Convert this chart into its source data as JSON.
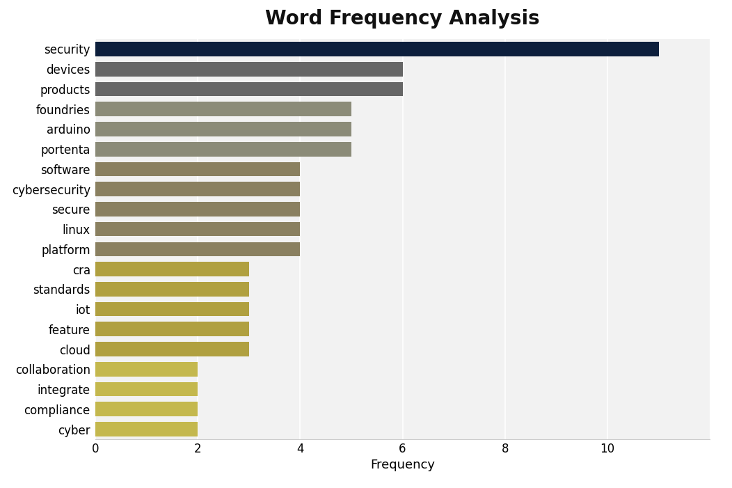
{
  "title": "Word Frequency Analysis",
  "categories": [
    "security",
    "devices",
    "products",
    "foundries",
    "arduino",
    "portenta",
    "software",
    "cybersecurity",
    "secure",
    "linux",
    "platform",
    "cra",
    "standards",
    "iot",
    "feature",
    "cloud",
    "collaboration",
    "integrate",
    "compliance",
    "cyber"
  ],
  "values": [
    11,
    6,
    6,
    5,
    5,
    5,
    4,
    4,
    4,
    4,
    4,
    3,
    3,
    3,
    3,
    3,
    2,
    2,
    2,
    2
  ],
  "bar_colors": [
    "#0d1f3c",
    "#666666",
    "#666666",
    "#8b8b78",
    "#8b8b78",
    "#8b8b78",
    "#8a8060",
    "#8a8060",
    "#8a8060",
    "#8a8060",
    "#8a8060",
    "#b0a040",
    "#b0a040",
    "#b0a040",
    "#b0a040",
    "#b0a040",
    "#c4b84e",
    "#c4b84e",
    "#c4b84e",
    "#c4b84e"
  ],
  "xlabel": "Frequency",
  "xlim": [
    0,
    12
  ],
  "xticks": [
    0,
    2,
    4,
    6,
    8,
    10
  ],
  "fig_background_color": "#ffffff",
  "axes_background_color": "#f2f2f2",
  "title_fontsize": 20,
  "label_fontsize": 13,
  "tick_fontsize": 12,
  "bar_height": 0.72
}
